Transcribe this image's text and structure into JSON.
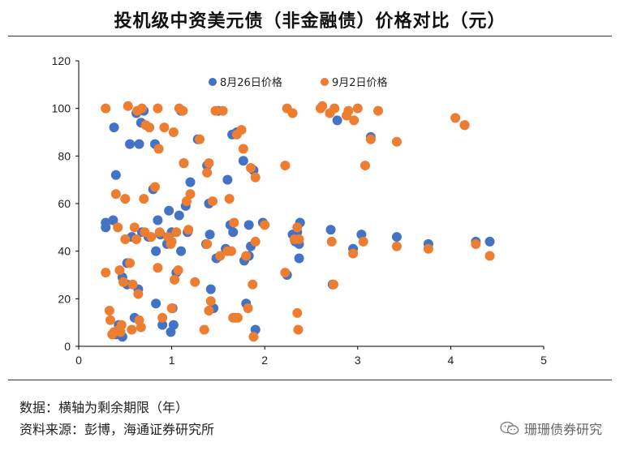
{
  "title": "投机级中资美元债（非金融债）价格对比（元）",
  "notes": {
    "data_note": "数据：横轴为剩余期限（年）",
    "source_note": "资料来源：彭博，海通证券研究所"
  },
  "watermark": {
    "text": "珊珊债券研究",
    "icon": "wechat-icon"
  },
  "chart_data": {
    "type": "scatter",
    "title": "",
    "xlabel": "",
    "ylabel": "",
    "xlim": [
      0,
      5
    ],
    "ylim": [
      0,
      120
    ],
    "xticks": [
      "0",
      "1",
      "2",
      "3",
      "4",
      "5"
    ],
    "yticks": [
      "0",
      "20",
      "40",
      "60",
      "80",
      "100",
      "120"
    ],
    "grid": false,
    "legend_position": "top-center",
    "series": [
      {
        "name": "8月26日价格",
        "color": "#4472C4",
        "points": [
          [
            0.29,
            52
          ],
          [
            0.29,
            50
          ],
          [
            0.37,
            53
          ],
          [
            0.38,
            92
          ],
          [
            0.4,
            72
          ],
          [
            0.4,
            5
          ],
          [
            0.43,
            9
          ],
          [
            0.45,
            6
          ],
          [
            0.47,
            4
          ],
          [
            0.47,
            29
          ],
          [
            0.52,
            35
          ],
          [
            0.52,
            26
          ],
          [
            0.55,
            85
          ],
          [
            0.57,
            46
          ],
          [
            0.6,
            12
          ],
          [
            0.62,
            98
          ],
          [
            0.64,
            24
          ],
          [
            0.65,
            85
          ],
          [
            0.67,
            94
          ],
          [
            0.68,
            48
          ],
          [
            0.7,
            99
          ],
          [
            0.75,
            46
          ],
          [
            0.8,
            66
          ],
          [
            0.82,
            85
          ],
          [
            0.83,
            40
          ],
          [
            0.83,
            18
          ],
          [
            0.85,
            53
          ],
          [
            0.88,
            47
          ],
          [
            0.9,
            9
          ],
          [
            0.95,
            43
          ],
          [
            0.97,
            57
          ],
          [
            0.99,
            6
          ],
          [
            0.99,
            44
          ],
          [
            1.0,
            48
          ],
          [
            1.01,
            16
          ],
          [
            1.02,
            9
          ],
          [
            1.05,
            31
          ],
          [
            1.08,
            55
          ],
          [
            1.1,
            40
          ],
          [
            1.1,
            99
          ],
          [
            1.13,
            77
          ],
          [
            1.15,
            59
          ],
          [
            1.17,
            48
          ],
          [
            1.2,
            69
          ],
          [
            1.28,
            87
          ],
          [
            1.37,
            43
          ],
          [
            1.38,
            76
          ],
          [
            1.4,
            60
          ],
          [
            1.41,
            47
          ],
          [
            1.42,
            24
          ],
          [
            1.45,
            16
          ],
          [
            1.48,
            37
          ],
          [
            1.5,
            99
          ],
          [
            1.58,
            41
          ],
          [
            1.6,
            70
          ],
          [
            1.63,
            51
          ],
          [
            1.65,
            89
          ],
          [
            1.66,
            48
          ],
          [
            1.68,
            12
          ],
          [
            1.7,
            90
          ],
          [
            1.77,
            78
          ],
          [
            1.78,
            36
          ],
          [
            1.8,
            18
          ],
          [
            1.83,
            38
          ],
          [
            1.83,
            51
          ],
          [
            1.85,
            42
          ],
          [
            1.88,
            74
          ],
          [
            1.9,
            7
          ],
          [
            1.98,
            52
          ],
          [
            2.24,
            30
          ],
          [
            2.3,
            47
          ],
          [
            2.33,
            44
          ],
          [
            2.35,
            48
          ],
          [
            2.37,
            43
          ],
          [
            2.37,
            37
          ],
          [
            2.38,
            52
          ],
          [
            2.71,
            49
          ],
          [
            2.73,
            26
          ],
          [
            2.78,
            95
          ],
          [
            2.95,
            41
          ],
          [
            3.04,
            47
          ],
          [
            3.14,
            88
          ],
          [
            3.42,
            46
          ],
          [
            3.76,
            43
          ],
          [
            4.15,
            93
          ],
          [
            4.27,
            44
          ],
          [
            4.42,
            44
          ]
        ]
      },
      {
        "name": "9月2日价格",
        "color": "#ED7D31",
        "points": [
          [
            0.29,
            100
          ],
          [
            0.29,
            31
          ],
          [
            0.33,
            15
          ],
          [
            0.34,
            11
          ],
          [
            0.36,
            5
          ],
          [
            0.38,
            6
          ],
          [
            0.4,
            64
          ],
          [
            0.42,
            50
          ],
          [
            0.43,
            7
          ],
          [
            0.44,
            32
          ],
          [
            0.45,
            6
          ],
          [
            0.46,
            9
          ],
          [
            0.48,
            27
          ],
          [
            0.5,
            62
          ],
          [
            0.5,
            45
          ],
          [
            0.53,
            101
          ],
          [
            0.55,
            35
          ],
          [
            0.57,
            7
          ],
          [
            0.58,
            26
          ],
          [
            0.6,
            50
          ],
          [
            0.62,
            45
          ],
          [
            0.63,
            99
          ],
          [
            0.64,
            22
          ],
          [
            0.65,
            11
          ],
          [
            0.67,
            8
          ],
          [
            0.68,
            100
          ],
          [
            0.7,
            62
          ],
          [
            0.71,
            48
          ],
          [
            0.72,
            93
          ],
          [
            0.76,
            92
          ],
          [
            0.78,
            46
          ],
          [
            0.82,
            67
          ],
          [
            0.85,
            100
          ],
          [
            0.85,
            33
          ],
          [
            0.86,
            83
          ],
          [
            0.87,
            48
          ],
          [
            0.9,
            12
          ],
          [
            0.92,
            92
          ],
          [
            0.96,
            46
          ],
          [
            0.99,
            43
          ],
          [
            1.0,
            16
          ],
          [
            1.0,
            44
          ],
          [
            1.02,
            90
          ],
          [
            1.03,
            28
          ],
          [
            1.05,
            48
          ],
          [
            1.07,
            32
          ],
          [
            1.08,
            100
          ],
          [
            1.12,
            99
          ],
          [
            1.13,
            77
          ],
          [
            1.16,
            61
          ],
          [
            1.18,
            49
          ],
          [
            1.2,
            64
          ],
          [
            1.25,
            27
          ],
          [
            1.3,
            87
          ],
          [
            1.35,
            7
          ],
          [
            1.38,
            43
          ],
          [
            1.38,
            73
          ],
          [
            1.4,
            77
          ],
          [
            1.4,
            15
          ],
          [
            1.42,
            19
          ],
          [
            1.44,
            61
          ],
          [
            1.47,
            99
          ],
          [
            1.52,
            38
          ],
          [
            1.55,
            99
          ],
          [
            1.6,
            40
          ],
          [
            1.62,
            62
          ],
          [
            1.64,
            40
          ],
          [
            1.66,
            12
          ],
          [
            1.67,
            52
          ],
          [
            1.7,
            89
          ],
          [
            1.71,
            12
          ],
          [
            1.75,
            91
          ],
          [
            1.77,
            83
          ],
          [
            1.8,
            38
          ],
          [
            1.82,
            16
          ],
          [
            1.85,
            75
          ],
          [
            1.87,
            26
          ],
          [
            1.88,
            4
          ],
          [
            1.9,
            71
          ],
          [
            1.9,
            44
          ],
          [
            2.0,
            51
          ],
          [
            2.22,
            76
          ],
          [
            2.22,
            31
          ],
          [
            2.24,
            100
          ],
          [
            2.3,
            98
          ],
          [
            2.32,
            45
          ],
          [
            2.35,
            50
          ],
          [
            2.35,
            14
          ],
          [
            2.36,
            7
          ],
          [
            2.37,
            45
          ],
          [
            2.6,
            100
          ],
          [
            2.62,
            101
          ],
          [
            2.7,
            98
          ],
          [
            2.72,
            44
          ],
          [
            2.74,
            26
          ],
          [
            2.75,
            100
          ],
          [
            2.88,
            97
          ],
          [
            2.9,
            99
          ],
          [
            2.95,
            39
          ],
          [
            2.96,
            95
          ],
          [
            3.0,
            100
          ],
          [
            3.06,
            44
          ],
          [
            3.08,
            76
          ],
          [
            3.14,
            87
          ],
          [
            3.22,
            99
          ],
          [
            3.42,
            86
          ],
          [
            3.42,
            42
          ],
          [
            3.76,
            41
          ],
          [
            4.05,
            96
          ],
          [
            4.15,
            93
          ],
          [
            4.27,
            43
          ],
          [
            4.42,
            38
          ]
        ]
      }
    ]
  }
}
